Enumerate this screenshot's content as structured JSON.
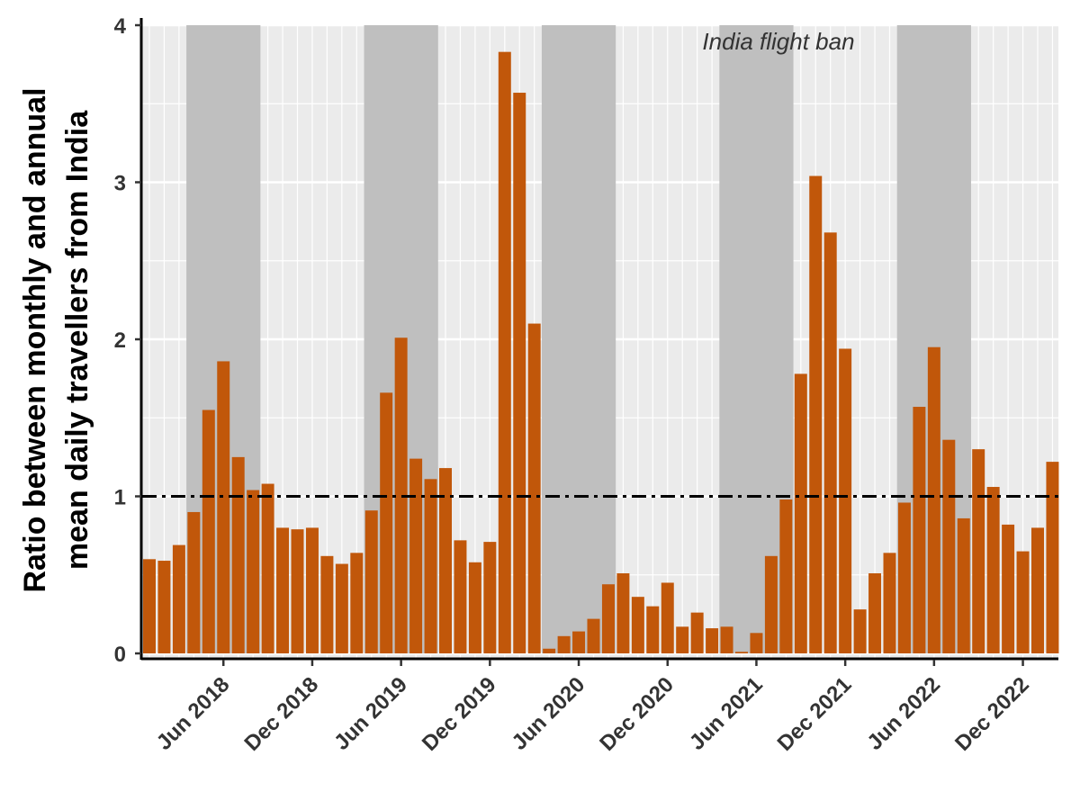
{
  "chart_data": {
    "type": "bar",
    "ylabel": [
      "Ratio between monthly and annual",
      "mean daily travellers from India"
    ],
    "xlabel": "",
    "ylim": [
      0,
      4
    ],
    "yticks": [
      0,
      1,
      2,
      3,
      4
    ],
    "x_start": "Jan 2018",
    "x_tick_labels": [
      "Jun 2018",
      "Dec 2018",
      "Jun 2019",
      "Dec 2019",
      "Jun 2020",
      "Dec 2020",
      "Jun 2021",
      "Dec 2021",
      "Jun 2022",
      "Dec 2022"
    ],
    "reference_line": {
      "value": 1,
      "style": "dash-dot",
      "color": "#000000"
    },
    "shaded_periods_label": "India flight ban",
    "shaded_periods": [
      [
        "Apr 2018",
        "Aug 2018"
      ],
      [
        "Apr 2019",
        "Aug 2019"
      ],
      [
        "Apr 2020",
        "Aug 2020"
      ],
      [
        "Apr 2021",
        "Aug 2021"
      ],
      [
        "Apr 2022",
        "Aug 2022"
      ]
    ],
    "bar_color": "#c1570a",
    "shade_color": "#bfbfbf",
    "panel_color": "#ebebeb",
    "values": [
      0.6,
      0.59,
      0.69,
      0.9,
      1.55,
      1.86,
      1.25,
      1.04,
      1.08,
      0.8,
      0.79,
      0.8,
      0.62,
      0.57,
      0.64,
      0.91,
      1.66,
      2.01,
      1.24,
      1.11,
      1.18,
      0.72,
      0.58,
      0.71,
      3.83,
      3.57,
      2.1,
      0.03,
      0.11,
      0.14,
      0.22,
      0.44,
      0.51,
      0.36,
      0.3,
      0.45,
      0.17,
      0.26,
      0.16,
      0.17,
      0.01,
      0.13,
      0.62,
      0.98,
      1.78,
      3.04,
      2.68,
      1.94,
      0.28,
      0.51,
      0.64,
      0.96,
      1.57,
      1.95,
      1.36,
      0.86,
      1.3,
      1.06,
      0.82,
      0.65,
      0.8,
      1.22
    ]
  }
}
